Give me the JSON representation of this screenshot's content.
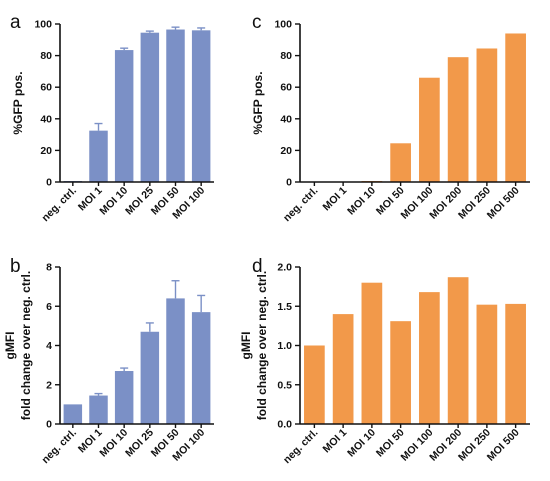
{
  "colors": {
    "blue": "#7b90c6",
    "orange": "#f2994a",
    "axis": "#111111"
  },
  "chart_data": [
    {
      "panel": "a",
      "type": "bar",
      "color": "#7b90c6",
      "categories": [
        "neg. ctrl.",
        "MOI 1",
        "MOI 10",
        "MOI 25",
        "MOI 50",
        "MOI 100"
      ],
      "values": [
        0.3,
        32.5,
        83.5,
        94.5,
        96.5,
        96
      ],
      "errors": [
        0,
        4.5,
        1.2,
        1.0,
        1.5,
        1.5
      ],
      "ylim": [
        0,
        100
      ],
      "yticks": [
        0,
        20,
        40,
        60,
        80,
        100
      ],
      "ylabel": [
        "%GFP pos."
      ],
      "xlabel": ""
    },
    {
      "panel": "c",
      "type": "bar",
      "color": "#f2994a",
      "categories": [
        "neg. ctrl.",
        "MOI 1",
        "MOI 10",
        "MOI 50",
        "MOI 100",
        "MOI 200",
        "MOI 250",
        "MOI 500"
      ],
      "values": [
        0,
        0,
        0.3,
        24.5,
        66,
        79,
        84.5,
        94
      ],
      "errors": [],
      "ylim": [
        0,
        100
      ],
      "yticks": [
        0,
        20,
        40,
        60,
        80,
        100
      ],
      "ylabel": [
        "%GFP pos."
      ],
      "xlabel": ""
    },
    {
      "panel": "b",
      "type": "bar",
      "color": "#7b90c6",
      "categories": [
        "neg. ctrl.",
        "MOI 1",
        "MOI 10",
        "MOI 25",
        "MOI 50",
        "MOI 100"
      ],
      "values": [
        1.0,
        1.45,
        2.7,
        4.7,
        6.4,
        5.7
      ],
      "errors": [
        0,
        0.1,
        0.15,
        0.45,
        0.9,
        0.85
      ],
      "ylim": [
        0,
        8
      ],
      "yticks": [
        0,
        2,
        4,
        6,
        8
      ],
      "ylabel": [
        "gMFI",
        "fold change over neg. ctrl."
      ],
      "xlabel": ""
    },
    {
      "panel": "d",
      "type": "bar",
      "color": "#f2994a",
      "categories": [
        "neg. ctrl.",
        "MOI 1",
        "MOI 10",
        "MOI 50",
        "MOI 100",
        "MOI 200",
        "MOI 250",
        "MOI 500"
      ],
      "values": [
        1.0,
        1.4,
        1.8,
        1.31,
        1.68,
        1.87,
        1.52,
        1.53
      ],
      "errors": [],
      "ylim": [
        0,
        2.0
      ],
      "yticks": [
        0.0,
        0.5,
        1.0,
        1.5,
        2.0
      ],
      "yticklabels": [
        "0.0",
        "0.5",
        "1.0",
        "1.5",
        "2.0"
      ],
      "ylabel": [
        "gMFI",
        "fold change over neg. ctrl."
      ],
      "xlabel": ""
    }
  ]
}
